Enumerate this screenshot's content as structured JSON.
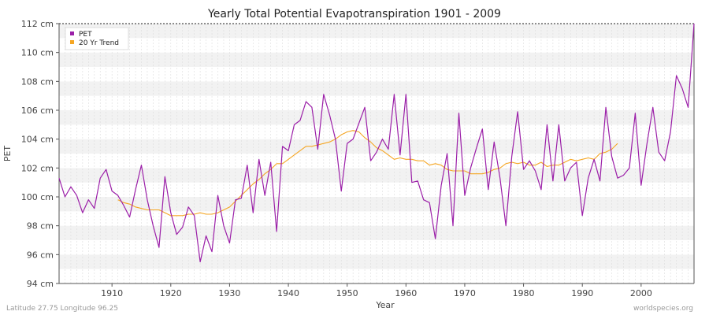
{
  "chart_data": {
    "type": "line",
    "title": "Yearly Total Potential Evapotranspiration 1901 - 2009",
    "xlabel": "Year",
    "ylabel": "PET",
    "xlim": [
      1901,
      2009
    ],
    "ylim": [
      94,
      112
    ],
    "y_ticks": [
      94,
      96,
      98,
      100,
      102,
      104,
      106,
      108,
      110,
      112
    ],
    "y_tick_labels": [
      "94 cm",
      "96 cm",
      "98 cm",
      "100 cm",
      "102 cm",
      "104 cm",
      "106 cm",
      "108 cm",
      "110 cm",
      "112 cm"
    ],
    "x_ticks": [
      1910,
      1920,
      1930,
      1940,
      1950,
      1960,
      1970,
      1980,
      1990,
      2000
    ],
    "x_tick_labels": [
      "1910",
      "1920",
      "1930",
      "1940",
      "1950",
      "1960",
      "1970",
      "1980",
      "1990",
      "2000"
    ],
    "legend": {
      "placement": "top-left",
      "entries": [
        "PET",
        "20 Yr Trend"
      ]
    },
    "series": [
      {
        "name": "PET",
        "color": "#9b1fa8",
        "x_start": 1901,
        "values": [
          101.3,
          100.0,
          100.7,
          100.1,
          98.9,
          99.8,
          99.2,
          101.3,
          101.9,
          100.4,
          100.1,
          99.4,
          98.6,
          100.5,
          102.2,
          99.8,
          98.0,
          96.5,
          101.4,
          98.9,
          97.4,
          97.9,
          99.3,
          98.7,
          95.5,
          97.3,
          96.2,
          100.1,
          98.0,
          96.8,
          99.8,
          99.9,
          102.2,
          98.9,
          102.6,
          100.1,
          102.4,
          97.6,
          103.5,
          103.2,
          105.0,
          105.3,
          106.6,
          106.2,
          103.3,
          107.1,
          105.7,
          104.0,
          100.4,
          103.7,
          104.0,
          105.1,
          106.2,
          102.5,
          103.1,
          104.0,
          103.3,
          107.1,
          102.9,
          107.1,
          101.0,
          101.1,
          99.8,
          99.6,
          97.1,
          100.8,
          103.0,
          98.0,
          105.8,
          100.1,
          102.0,
          103.4,
          104.7,
          100.5,
          103.8,
          101.3,
          98.0,
          102.8,
          105.9,
          101.9,
          102.5,
          101.8,
          100.5,
          105.0,
          101.1,
          105.0,
          101.1,
          102.0,
          102.4,
          98.7,
          101.3,
          102.6,
          101.1,
          106.2,
          102.8,
          101.3,
          101.5,
          102.0,
          105.8,
          100.8,
          103.7,
          106.2,
          103.1,
          102.5,
          104.5,
          108.4,
          107.5,
          106.2,
          112.0
        ]
      },
      {
        "name": "20 Yr Trend",
        "color": "#f5a623",
        "x_start": 1911,
        "values": [
          99.8,
          99.6,
          99.5,
          99.3,
          99.2,
          99.1,
          99.1,
          99.1,
          98.9,
          98.7,
          98.7,
          98.7,
          98.8,
          98.8,
          98.9,
          98.8,
          98.8,
          98.9,
          99.1,
          99.3,
          99.7,
          100.1,
          100.5,
          100.9,
          101.2,
          101.6,
          101.9,
          102.3,
          102.3,
          102.6,
          102.9,
          103.2,
          103.5,
          103.5,
          103.6,
          103.7,
          103.8,
          104.0,
          104.3,
          104.5,
          104.6,
          104.5,
          104.1,
          103.8,
          103.4,
          103.2,
          102.9,
          102.6,
          102.7,
          102.6,
          102.6,
          102.5,
          102.5,
          102.2,
          102.3,
          102.2,
          101.9,
          101.8,
          101.8,
          101.8,
          101.6,
          101.6,
          101.6,
          101.7,
          101.9,
          102.0,
          102.3,
          102.4,
          102.3,
          102.4,
          102.2,
          102.2,
          102.4,
          102.1,
          102.2,
          102.2,
          102.4,
          102.6,
          102.5,
          102.6,
          102.7,
          102.6,
          103.0,
          103.1,
          103.3,
          103.7
        ]
      }
    ]
  },
  "footer": {
    "location": "Latitude 27.75 Longitude 96.25",
    "source": "worldspecies.org"
  }
}
